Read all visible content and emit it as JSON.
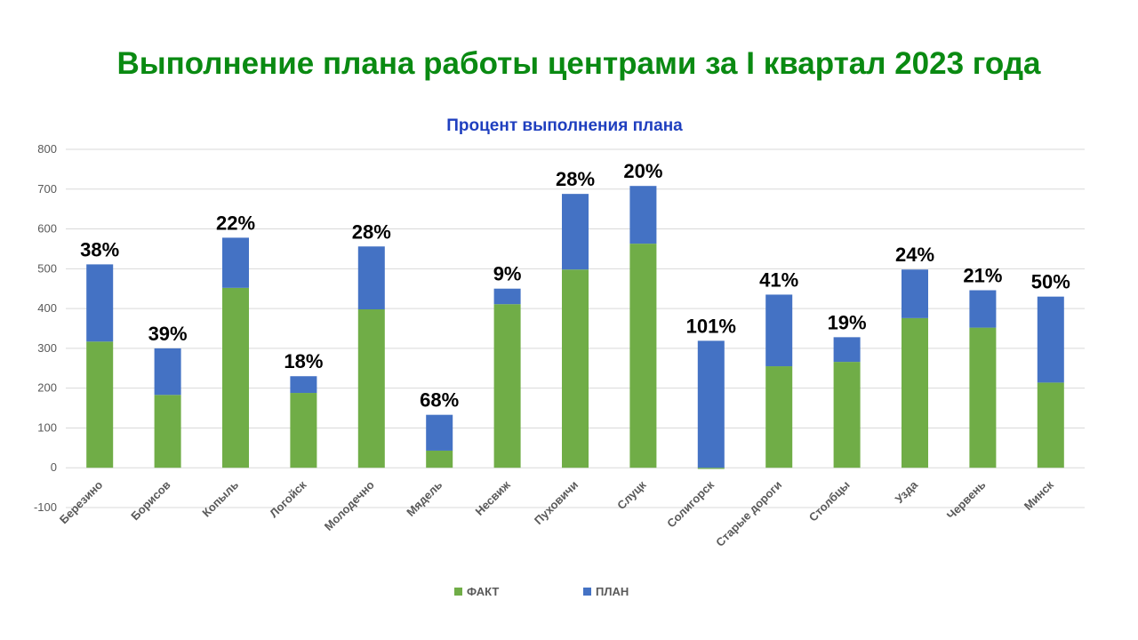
{
  "page": {
    "heading": "Выполнение плана работы центрами за I квартал 2023 года"
  },
  "colors": {
    "heading": "#0a8a12",
    "chart_title": "#1f3fbf",
    "fact": "#70ad47",
    "plan": "#4472c4",
    "grid": "#d9d9d9",
    "text": "#595959"
  },
  "chart_data": {
    "type": "bar",
    "stacked": true,
    "title": "Процент выполнения плана",
    "xlabel": "",
    "ylabel": "",
    "ylim": [
      -100,
      800
    ],
    "yticks": [
      -100,
      0,
      100,
      200,
      300,
      400,
      500,
      600,
      700,
      800
    ],
    "grid": true,
    "legend_position": "bottom",
    "categories": [
      "Березино",
      "Борисов",
      "Копыль",
      "Логойск",
      "Молодечно",
      "Мядель",
      "Несвиж",
      "Пуховичи",
      "Слуцк",
      "Солигорск",
      "Старые дороги",
      "Столбцы",
      "Узда",
      "Червень",
      "Минск"
    ],
    "series": [
      {
        "name": "ФАКТ",
        "values": [
          317,
          183,
          452,
          188,
          398,
          43,
          411,
          498,
          563,
          -3,
          255,
          266,
          376,
          352,
          214
        ]
      },
      {
        "name": "ПЛАН",
        "values": [
          194,
          117,
          126,
          42,
          158,
          90,
          39,
          190,
          145,
          319,
          180,
          62,
          122,
          94,
          216
        ]
      }
    ],
    "data_labels": [
      "38%",
      "39%",
      "22%",
      "18%",
      "28%",
      "68%",
      "9%",
      "28%",
      "20%",
      "101%",
      "41%",
      "19%",
      "24%",
      "21%",
      "50%"
    ]
  }
}
